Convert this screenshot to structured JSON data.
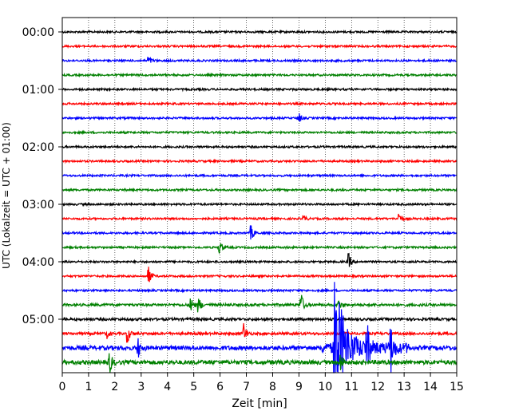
{
  "chart_data": {
    "type": "line",
    "title": "",
    "xlabel": "Zeit  [min]",
    "ylabel": "UTC (Lokalzeit = UTC + 01:00)",
    "xlim": [
      0,
      15
    ],
    "x_ticks": [
      "0",
      "1",
      "2",
      "3",
      "4",
      "5",
      "6",
      "7",
      "8",
      "9",
      "10",
      "11",
      "12",
      "13",
      "14",
      "15"
    ],
    "y_ticks": [
      "00:00",
      "01:00",
      "02:00",
      "03:00",
      "04:00",
      "05:00"
    ],
    "trace_interval_minutes": 15,
    "trace_count": 24,
    "grid": "vertical-dotted",
    "trace_colors": [
      "#000000",
      "#ff0000",
      "#0000ff",
      "#008000"
    ],
    "events": [
      {
        "trace": 2,
        "x": 3.3,
        "amplitude": 0.25
      },
      {
        "trace": 6,
        "x": 9.0,
        "amplitude": 0.35
      },
      {
        "trace": 13,
        "x": 12.8,
        "amplitude": 0.45
      },
      {
        "trace": 13,
        "x": 9.2,
        "amplitude": 0.2
      },
      {
        "trace": 14,
        "x": 7.2,
        "amplitude": 0.5
      },
      {
        "trace": 15,
        "x": 6.0,
        "amplitude": 0.4
      },
      {
        "trace": 16,
        "x": 10.9,
        "amplitude": 0.55
      },
      {
        "trace": 17,
        "x": 3.3,
        "amplitude": 0.6
      },
      {
        "trace": 19,
        "x": 4.9,
        "amplitude": 0.55
      },
      {
        "trace": 19,
        "x": 5.2,
        "amplitude": 0.45
      },
      {
        "trace": 19,
        "x": 9.1,
        "amplitude": 0.7
      },
      {
        "trace": 19,
        "x": 10.5,
        "amplitude": 0.4
      },
      {
        "trace": 21,
        "x": 2.5,
        "amplitude": 0.55
      },
      {
        "trace": 21,
        "x": 6.9,
        "amplitude": 0.7
      },
      {
        "trace": 21,
        "x": 1.7,
        "amplitude": 0.3
      },
      {
        "trace": 22,
        "x": 2.9,
        "amplitude": 0.6
      },
      {
        "trace": 22,
        "x": 10.35,
        "amplitude": 5.0
      },
      {
        "trace": 22,
        "x": 11.6,
        "amplitude": 1.4
      },
      {
        "trace": 22,
        "x": 12.5,
        "amplitude": 1.5
      },
      {
        "trace": 23,
        "x": 1.8,
        "amplitude": 0.8
      },
      {
        "trace": 23,
        "x": 10.6,
        "amplitude": 0.6
      }
    ]
  }
}
